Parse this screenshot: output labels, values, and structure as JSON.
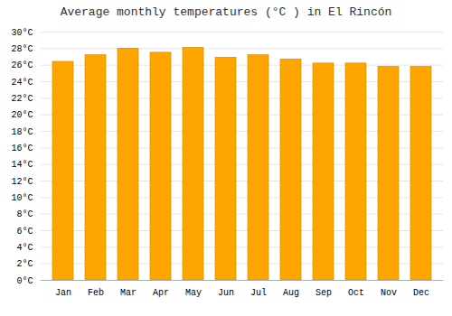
{
  "chart_data": {
    "type": "bar",
    "title": "Average monthly temperatures (°C ) in El Rincón",
    "categories": [
      "Jan",
      "Feb",
      "Mar",
      "Apr",
      "May",
      "Jun",
      "Jul",
      "Aug",
      "Sep",
      "Oct",
      "Nov",
      "Dec"
    ],
    "values": [
      26.4,
      27.2,
      28.0,
      27.5,
      28.1,
      26.9,
      27.2,
      26.7,
      26.2,
      26.2,
      25.8,
      25.8
    ],
    "color": "#FFA500",
    "ylim": [
      0,
      30
    ],
    "yticks": [
      {
        "value": 0,
        "label": "0°C"
      },
      {
        "value": 2,
        "label": "2°C"
      },
      {
        "value": 4,
        "label": "4°C"
      },
      {
        "value": 6,
        "label": "6°C"
      },
      {
        "value": 8,
        "label": "8°C"
      },
      {
        "value": 10,
        "label": "10°C"
      },
      {
        "value": 12,
        "label": "12°C"
      },
      {
        "value": 14,
        "label": "14°C"
      },
      {
        "value": 16,
        "label": "16°C"
      },
      {
        "value": 18,
        "label": "18°C"
      },
      {
        "value": 20,
        "label": "20°C"
      },
      {
        "value": 22,
        "label": "22°C"
      },
      {
        "value": 24,
        "label": "24°C"
      },
      {
        "value": 26,
        "label": "26°C"
      },
      {
        "value": 28,
        "label": "28°C"
      },
      {
        "value": 30,
        "label": "30°C"
      }
    ],
    "grid": true
  }
}
